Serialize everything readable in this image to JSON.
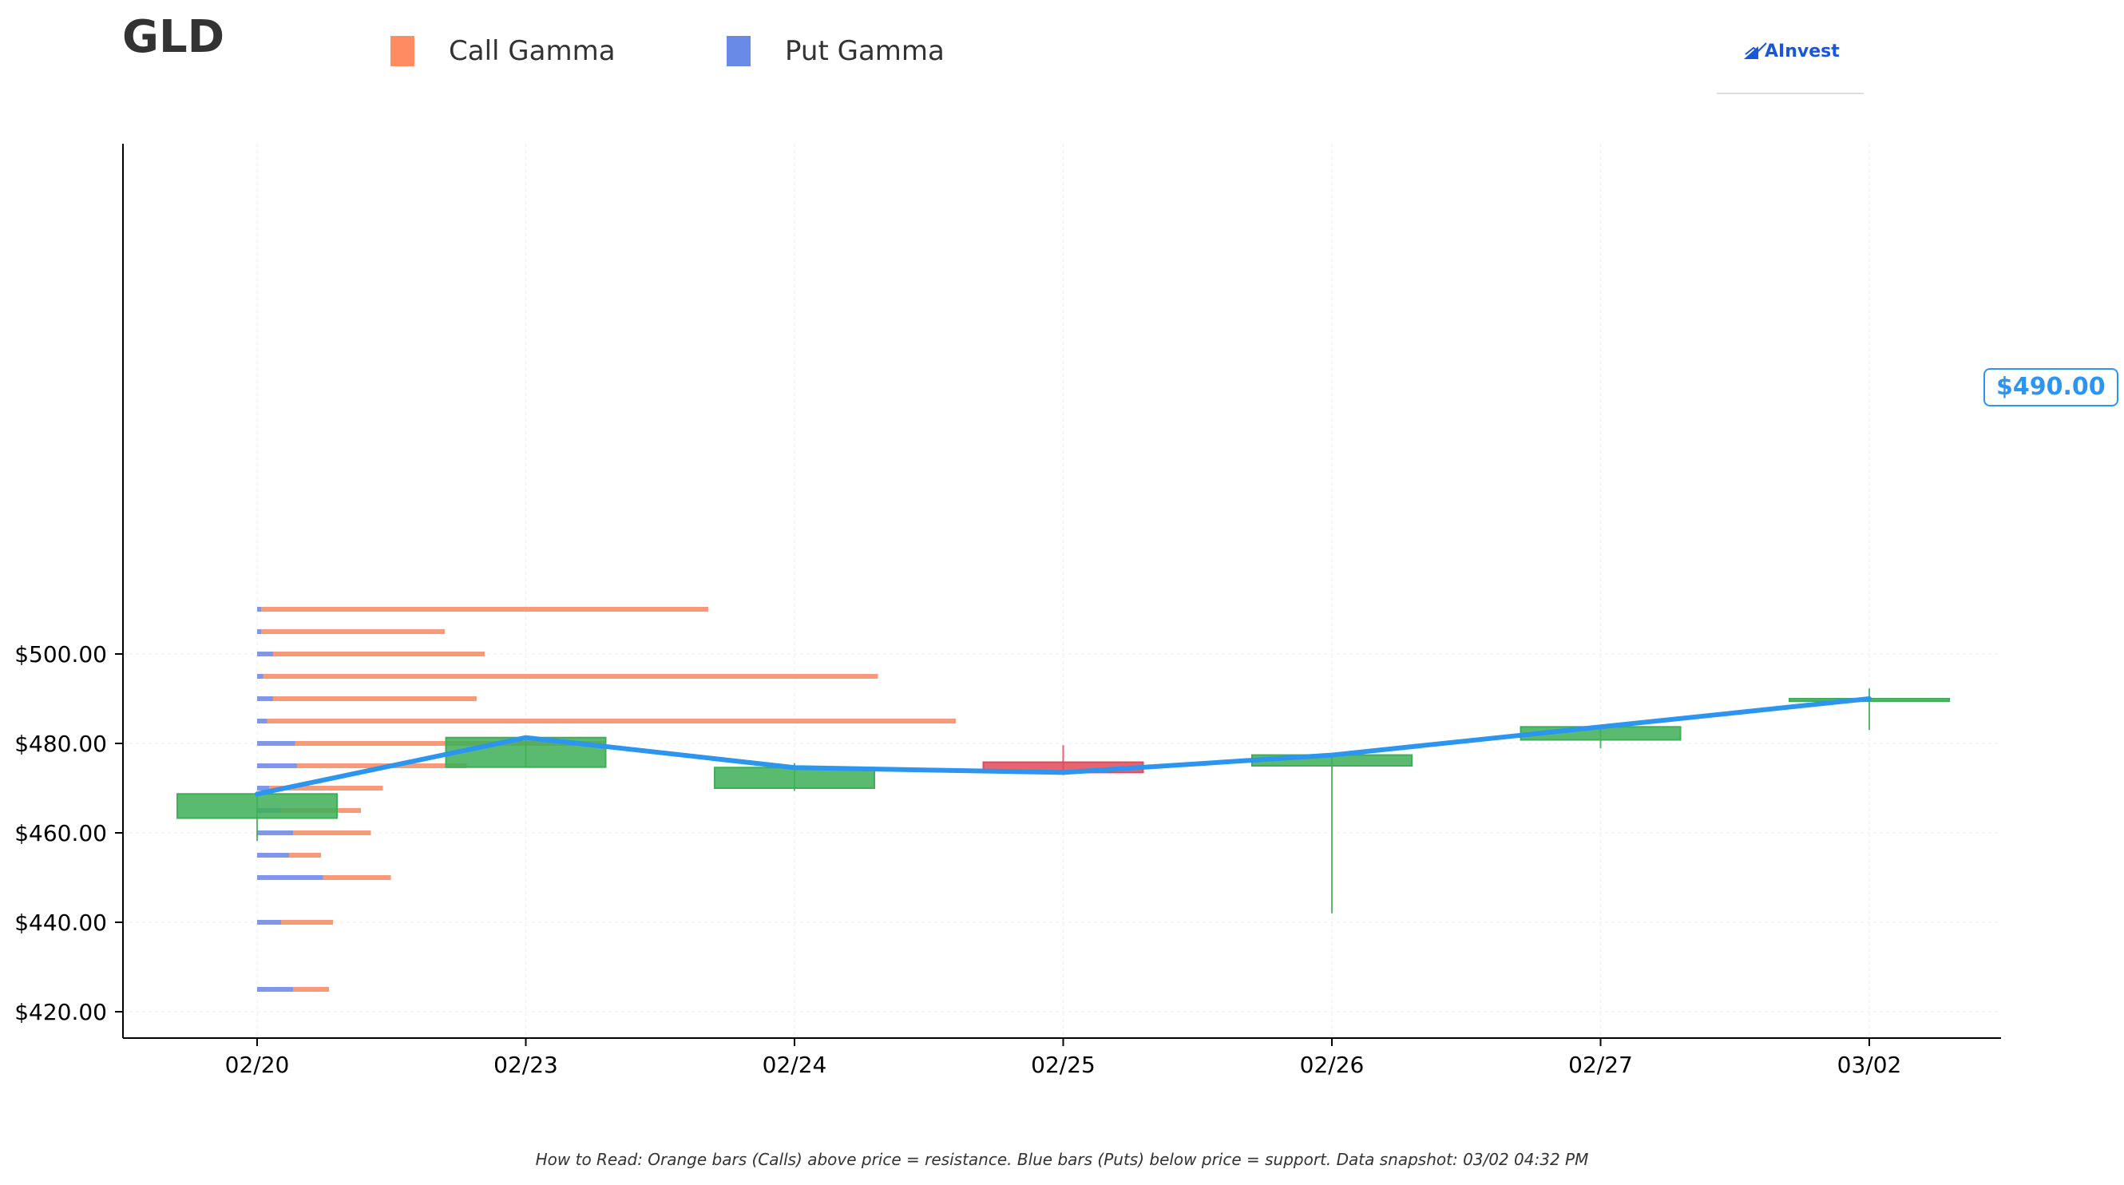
{
  "header": {
    "ticker": "GLD",
    "legend": [
      {
        "label": "Call Gamma",
        "color": "#ff8c61"
      },
      {
        "label": "Put Gamma",
        "color": "#6a8ae8"
      }
    ],
    "brand": "AInvest"
  },
  "current_price_label": "$490.00",
  "footnote": "How to Read: Orange bars (Calls) above price = resistance. Blue bars (Puts) below price = support. Data snapshot: 03/02 04:32 PM",
  "colors": {
    "up": "#3daf57",
    "down": "#e04b5a",
    "price_line": "#2b95ef",
    "call": "#f79a7a",
    "put": "#7e97ea",
    "axis": "#000000",
    "grid": "#eeeeee"
  },
  "chart_data": {
    "type": "candlestick",
    "title": "",
    "xlabel": "",
    "ylabel": "",
    "categories": [
      "02/20",
      "02/23",
      "02/24",
      "02/25",
      "02/26",
      "02/27",
      "03/02"
    ],
    "y_ticks": [
      420,
      440,
      460,
      480,
      500
    ],
    "y_tick_labels": [
      "$420.00",
      "$440.00",
      "$460.00",
      "$480.00",
      "$500.00"
    ],
    "ylim": [
      417,
      514
    ],
    "grid": true,
    "legend_placement": "top-left",
    "ohlc": [
      {
        "date": "02/20",
        "open": 463.3,
        "high": 468.7,
        "low": 458.2,
        "close": 468.7
      },
      {
        "date": "02/23",
        "open": 474.7,
        "high": 481.3,
        "low": 474.7,
        "close": 481.3
      },
      {
        "date": "02/24",
        "open": 470.0,
        "high": 475.6,
        "low": 469.4,
        "close": 474.6
      },
      {
        "date": "02/25",
        "open": 475.8,
        "high": 479.6,
        "low": 472.9,
        "close": 473.5
      },
      {
        "date": "02/26",
        "open": 475.0,
        "high": 477.4,
        "low": 442.0,
        "close": 477.4
      },
      {
        "date": "02/27",
        "open": 480.8,
        "high": 483.7,
        "low": 478.9,
        "close": 483.7
      },
      {
        "date": "03/02",
        "open": 490.0,
        "high": 492.3,
        "low": 483.0,
        "close": 490.0
      }
    ],
    "price_line": [
      468.7,
      481.3,
      474.6,
      473.5,
      477.4,
      483.7,
      490.0
    ],
    "gamma_levels": [
      {
        "strike": 510,
        "put": 0.2,
        "call": 22.4
      },
      {
        "strike": 505,
        "put": 0.2,
        "call": 9.2
      },
      {
        "strike": 500,
        "put": 0.8,
        "call": 10.6
      },
      {
        "strike": 495,
        "put": 0.3,
        "call": 30.8
      },
      {
        "strike": 490,
        "put": 0.8,
        "call": 10.2
      },
      {
        "strike": 485,
        "put": 0.5,
        "call": 34.5
      },
      {
        "strike": 480,
        "put": 1.9,
        "call": 15.5
      },
      {
        "strike": 475,
        "put": 2.0,
        "call": 8.5
      },
      {
        "strike": 470,
        "put": 0.6,
        "call": 5.7
      },
      {
        "strike": 465,
        "put": 1.2,
        "call": 4.0
      },
      {
        "strike": 460,
        "put": 1.8,
        "call": 3.9
      },
      {
        "strike": 455,
        "put": 1.6,
        "call": 1.6
      },
      {
        "strike": 450,
        "put": 3.3,
        "call": 3.4
      },
      {
        "strike": 440,
        "put": 1.2,
        "call": 2.6
      },
      {
        "strike": 425,
        "put": 1.8,
        "call": 1.8
      }
    ]
  }
}
